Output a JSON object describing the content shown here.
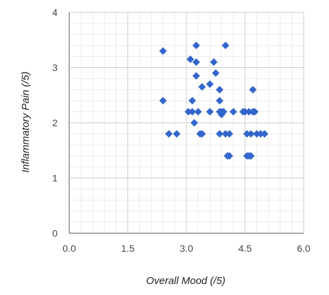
{
  "chart_data": {
    "type": "scatter",
    "title": "",
    "xlabel": "Overall Mood (/5)",
    "ylabel": "Inflammatory Pain (/5)",
    "xlim": [
      0,
      6
    ],
    "ylim": [
      0,
      4
    ],
    "x_ticks": [
      0,
      1.5,
      3,
      4.5,
      6
    ],
    "x_tick_labels": [
      "0.0",
      "1.5",
      "3.0",
      "4.5",
      "6.0"
    ],
    "y_ticks": [
      0,
      1,
      2,
      3,
      4
    ],
    "y_tick_labels": [
      "0",
      "1",
      "2",
      "3",
      "4"
    ],
    "grid": true,
    "legend": "none",
    "marker": "diamond",
    "marker_color": "#3366cc",
    "series": [
      {
        "points": [
          [
            2.4,
            3.3
          ],
          [
            2.4,
            2.4
          ],
          [
            2.55,
            1.8
          ],
          [
            2.75,
            1.8
          ],
          [
            3.05,
            2.2
          ],
          [
            3.1,
            3.15
          ],
          [
            3.15,
            2.2
          ],
          [
            3.15,
            2.4
          ],
          [
            3.2,
            2.0
          ],
          [
            3.25,
            3.4
          ],
          [
            3.25,
            3.1
          ],
          [
            3.25,
            2.85
          ],
          [
            3.3,
            2.2
          ],
          [
            3.35,
            1.8
          ],
          [
            3.4,
            1.8
          ],
          [
            3.4,
            2.65
          ],
          [
            3.6,
            2.7
          ],
          [
            3.6,
            2.2
          ],
          [
            3.7,
            3.1
          ],
          [
            3.75,
            2.9
          ],
          [
            3.85,
            2.6
          ],
          [
            3.85,
            2.4
          ],
          [
            3.85,
            2.2
          ],
          [
            3.9,
            2.15
          ],
          [
            3.9,
            2.2
          ],
          [
            3.95,
            2.2
          ],
          [
            3.85,
            1.8
          ],
          [
            4.0,
            1.8
          ],
          [
            4.0,
            3.4
          ],
          [
            4.05,
            1.4
          ],
          [
            4.1,
            1.4
          ],
          [
            4.1,
            1.8
          ],
          [
            4.2,
            2.2
          ],
          [
            4.45,
            2.2
          ],
          [
            4.5,
            2.2
          ],
          [
            4.55,
            1.8
          ],
          [
            4.55,
            1.4
          ],
          [
            4.6,
            1.4
          ],
          [
            4.65,
            1.4
          ],
          [
            4.6,
            2.2
          ],
          [
            4.65,
            1.8
          ],
          [
            4.7,
            2.2
          ],
          [
            4.75,
            2.2
          ],
          [
            4.7,
            2.6
          ],
          [
            4.8,
            1.8
          ],
          [
            4.9,
            1.8
          ],
          [
            5.0,
            1.8
          ]
        ]
      }
    ]
  }
}
